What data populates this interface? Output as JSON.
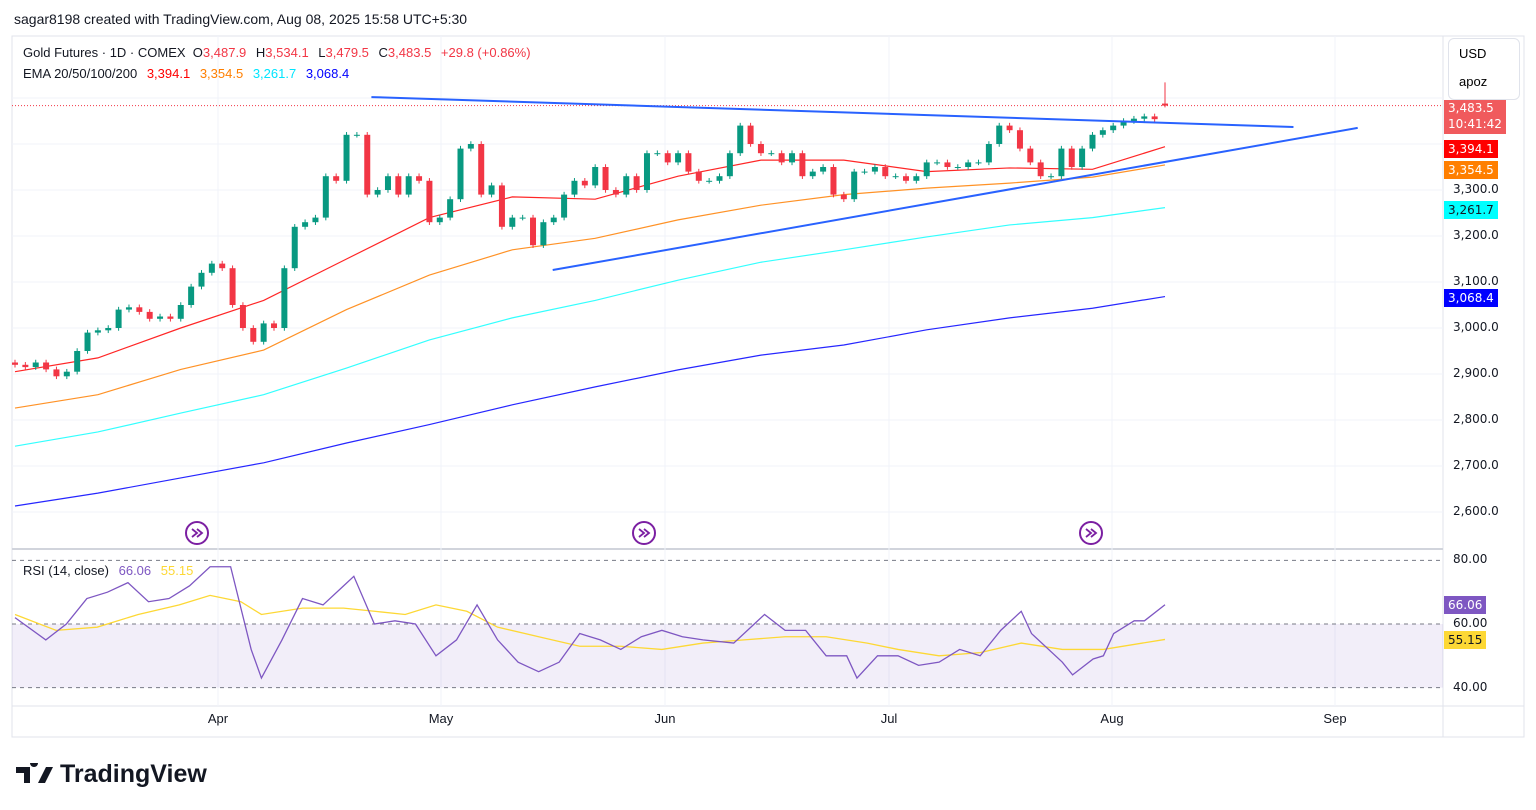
{
  "credit": "sagar8198 created with TradingView.com, Aug 08, 2025 15:58 UTC+5:30",
  "legend": {
    "symbol": "Gold Futures · 1D · COMEX",
    "o_label": "O",
    "open": "3,487.9",
    "h_label": "H",
    "high": "3,534.1",
    "l_label": "L",
    "low": "3,479.5",
    "c_label": "C",
    "close": "3,483.5",
    "change": "+29.8 (+0.86%)",
    "ema_label": "EMA 20/50/100/200",
    "ema20": "3,394.1",
    "ema50": "3,354.5",
    "ema100": "3,261.7",
    "ema200": "3,068.4"
  },
  "currency": {
    "unit": "USD",
    "mode": "apoz"
  },
  "tags": {
    "price": "3,483.5",
    "countdown": "10:41:42",
    "ema20": "3,394.1",
    "ema50": "3,354.5",
    "ema100": "3,261.7",
    "ema200": "3,068.4",
    "rsi": "66.06",
    "rsi_ma": "55.15"
  },
  "colors": {
    "up": "#089981",
    "down": "#f23645",
    "ema20": "#ff0000",
    "ema50": "#ff7f00",
    "ema100": "#00ffff",
    "ema200": "#0000ff",
    "rsi": "#7e57c2",
    "rsi_ma": "#fdd835",
    "trendline": "#2962ff",
    "price_tag": "#f05a5d"
  },
  "rsi_legend": {
    "label": "RSI (14, close)",
    "value": "66.06",
    "ma": "55.15"
  },
  "logo": "TradingView",
  "chart_data": [
    {
      "type": "candlestick",
      "title": "Gold Futures · 1D · COMEX",
      "x_ticks": [
        "Apr",
        "May",
        "Jun",
        "Jul",
        "Aug",
        "Sep"
      ],
      "y_ticks": [
        "3,300.0",
        "3,200.0",
        "3,100.0",
        "3,000.0",
        "2,900.0",
        "2,800.0",
        "2,700.0",
        "2,600.0"
      ],
      "ylim": [
        2580,
        3560
      ],
      "close": [
        2920,
        2915,
        2925,
        2910,
        2895,
        2905,
        2950,
        2990,
        2995,
        3000,
        3040,
        3045,
        3035,
        3020,
        3025,
        3020,
        3050,
        3090,
        3120,
        3140,
        3130,
        3050,
        3000,
        2970,
        3010,
        3000,
        3130,
        3220,
        3230,
        3240,
        3330,
        3320,
        3420,
        3420,
        3290,
        3300,
        3330,
        3290,
        3330,
        3320,
        3230,
        3240,
        3280,
        3390,
        3400,
        3290,
        3310,
        3220,
        3240,
        3240,
        3180,
        3230,
        3240,
        3290,
        3320,
        3310,
        3350,
        3300,
        3290,
        3330,
        3300,
        3380,
        3380,
        3360,
        3380,
        3340,
        3320,
        3320,
        3330,
        3380,
        3440,
        3400,
        3380,
        3380,
        3360,
        3380,
        3330,
        3340,
        3350,
        3290,
        3280,
        3340,
        3340,
        3350,
        3330,
        3330,
        3320,
        3330,
        3360,
        3360,
        3350,
        3350,
        3360,
        3360,
        3400,
        3440,
        3430,
        3390,
        3360,
        3330,
        3330,
        3390,
        3350,
        3390,
        3420,
        3430,
        3440,
        3450,
        3455,
        3460,
        3454,
        3483.5
      ],
      "last": {
        "open": 3487.9,
        "high": 3534.1,
        "low": 3479.5,
        "close": 3483.5
      },
      "ema_sample_bars": [
        0,
        8,
        16,
        24,
        32,
        40,
        48,
        56,
        64,
        72,
        80,
        88,
        96,
        104,
        111
      ],
      "ema": [
        {
          "name": "EMA 20",
          "values": [
            2905,
            2935,
            3000,
            3060,
            3150,
            3240,
            3285,
            3280,
            3330,
            3365,
            3365,
            3340,
            3348,
            3345,
            3394.1
          ]
        },
        {
          "name": "EMA 50",
          "values": [
            2826,
            2855,
            2910,
            2952,
            3040,
            3115,
            3170,
            3195,
            3235,
            3267,
            3290,
            3304,
            3315,
            3328,
            3354.5
          ]
        },
        {
          "name": "EMA 100",
          "values": [
            2743,
            2774,
            2815,
            2855,
            2913,
            2974,
            3022,
            3060,
            3104,
            3143,
            3170,
            3198,
            3224,
            3240,
            3261.7
          ]
        },
        {
          "name": "EMA 200",
          "values": [
            2613,
            2641,
            2674,
            2707,
            2750,
            2790,
            2833,
            2872,
            2909,
            2941,
            2963,
            2996,
            3022,
            3043,
            3068.4
          ]
        }
      ],
      "trendlines": [
        {
          "from": [
            34.4,
            3502
          ],
          "to": [
            123.4,
            3437
          ]
        },
        {
          "from": [
            51.9,
            3126
          ],
          "to": [
            129.6,
            3435
          ]
        }
      ]
    },
    {
      "type": "line",
      "title": "RSI (14, close)",
      "y_ticks": [
        "80.00",
        "60.00",
        "40.00"
      ],
      "ylim": [
        30,
        90
      ],
      "band": [
        40,
        60,
        80
      ],
      "rsi": [
        [
          0,
          62
        ],
        [
          3,
          55
        ],
        [
          5,
          60
        ],
        [
          7,
          68
        ],
        [
          9,
          70
        ],
        [
          11,
          73
        ],
        [
          13,
          67
        ],
        [
          15,
          68
        ],
        [
          17,
          72
        ],
        [
          19,
          78
        ],
        [
          21,
          78
        ],
        [
          22,
          65
        ],
        [
          23,
          52
        ],
        [
          24,
          43
        ],
        [
          26,
          55
        ],
        [
          28,
          68
        ],
        [
          30,
          66
        ],
        [
          32,
          72
        ],
        [
          33,
          75
        ],
        [
          35,
          60
        ],
        [
          37,
          61
        ],
        [
          39,
          60
        ],
        [
          41,
          50
        ],
        [
          43,
          55
        ],
        [
          45,
          66
        ],
        [
          47,
          55
        ],
        [
          49,
          48
        ],
        [
          51,
          45
        ],
        [
          53,
          48
        ],
        [
          55,
          57
        ],
        [
          57,
          55
        ],
        [
          59,
          52
        ],
        [
          61,
          56
        ],
        [
          63,
          58
        ],
        [
          65,
          56
        ],
        [
          67,
          55
        ],
        [
          70,
          54
        ],
        [
          72,
          60
        ],
        [
          73,
          63
        ],
        [
          75,
          58
        ],
        [
          77,
          58
        ],
        [
          79,
          50
        ],
        [
          81,
          50
        ],
        [
          82,
          43
        ],
        [
          84,
          50
        ],
        [
          86,
          50
        ],
        [
          88,
          47
        ],
        [
          90,
          48
        ],
        [
          92,
          52
        ],
        [
          94,
          50
        ],
        [
          96,
          58
        ],
        [
          98,
          64
        ],
        [
          99,
          57
        ],
        [
          102,
          48
        ],
        [
          103,
          44
        ],
        [
          105,
          49
        ],
        [
          106,
          50
        ],
        [
          107,
          57
        ],
        [
          109,
          61
        ],
        [
          110,
          61
        ],
        [
          112,
          66.06
        ]
      ],
      "rsi_ma": [
        [
          0,
          63
        ],
        [
          4,
          58
        ],
        [
          8,
          59
        ],
        [
          12,
          63
        ],
        [
          16,
          66
        ],
        [
          19,
          69
        ],
        [
          22,
          67
        ],
        [
          24,
          63
        ],
        [
          28,
          65
        ],
        [
          32,
          65
        ],
        [
          35,
          64
        ],
        [
          38,
          63
        ],
        [
          41,
          66
        ],
        [
          44,
          64
        ],
        [
          47,
          59
        ],
        [
          51,
          56
        ],
        [
          55,
          53
        ],
        [
          59,
          53
        ],
        [
          63,
          52
        ],
        [
          67,
          54
        ],
        [
          71,
          55
        ],
        [
          75,
          56
        ],
        [
          79,
          56
        ],
        [
          83,
          54
        ],
        [
          86,
          52
        ],
        [
          90,
          50
        ],
        [
          94,
          51
        ],
        [
          98,
          54
        ],
        [
          102,
          52
        ],
        [
          106,
          52
        ],
        [
          112,
          55.15
        ]
      ]
    }
  ]
}
